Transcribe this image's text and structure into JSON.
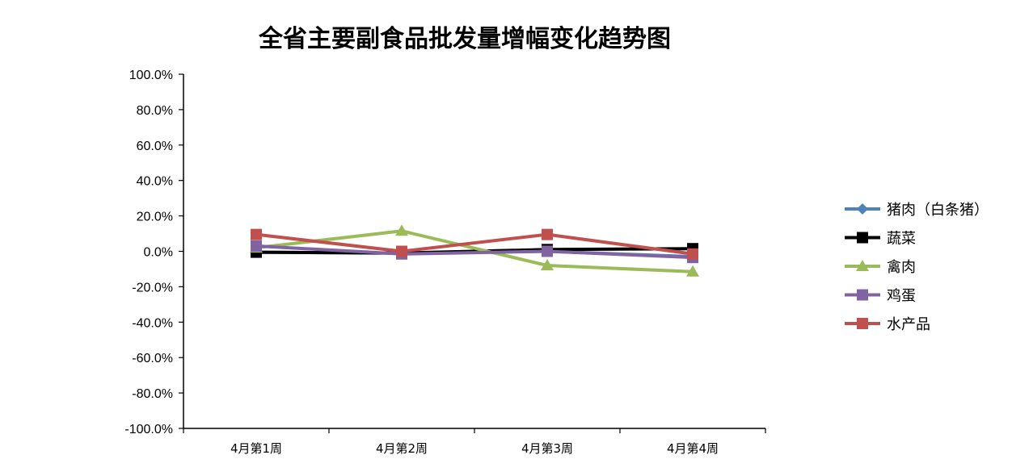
{
  "chart_data": {
    "type": "line",
    "title": "全省主要副食品批发量增幅变化趋势图",
    "categories": [
      "4月第1周",
      "4月第2周",
      "4月第3周",
      "4月第4周"
    ],
    "ylim": [
      -1.0,
      1.0
    ],
    "y_ticks": [
      1.0,
      0.8,
      0.6,
      0.4,
      0.2,
      0.0,
      -0.2,
      -0.4,
      -0.6,
      -0.8,
      -1.0
    ],
    "y_tick_labels": [
      "100.0%",
      "80.0%",
      "60.0%",
      "40.0%",
      "20.0%",
      "0.0%",
      "-20.0%",
      "-40.0%",
      "-60.0%",
      "-80.0%",
      "-100.0%"
    ],
    "grid": false,
    "legend_position": "right",
    "series": [
      {
        "name": "猪肉（白条猪）",
        "color": "#4F81BD",
        "marker": "diamond",
        "values": [
          -0.005,
          -0.01,
          0.0,
          -0.03
        ]
      },
      {
        "name": "蔬菜",
        "color": "#000000",
        "marker": "square",
        "values": [
          -0.005,
          -0.01,
          0.01,
          0.015
        ]
      },
      {
        "name": "禽肉",
        "color": "#9BBB59",
        "marker": "triangle",
        "values": [
          0.02,
          0.115,
          -0.08,
          -0.115
        ]
      },
      {
        "name": "鸡蛋",
        "color": "#8064A2",
        "marker": "square",
        "values": [
          0.03,
          -0.015,
          0.0,
          -0.035
        ]
      },
      {
        "name": "水产品",
        "color": "#C0504D",
        "marker": "square",
        "values": [
          0.095,
          0.0,
          0.095,
          -0.015
        ]
      }
    ]
  }
}
